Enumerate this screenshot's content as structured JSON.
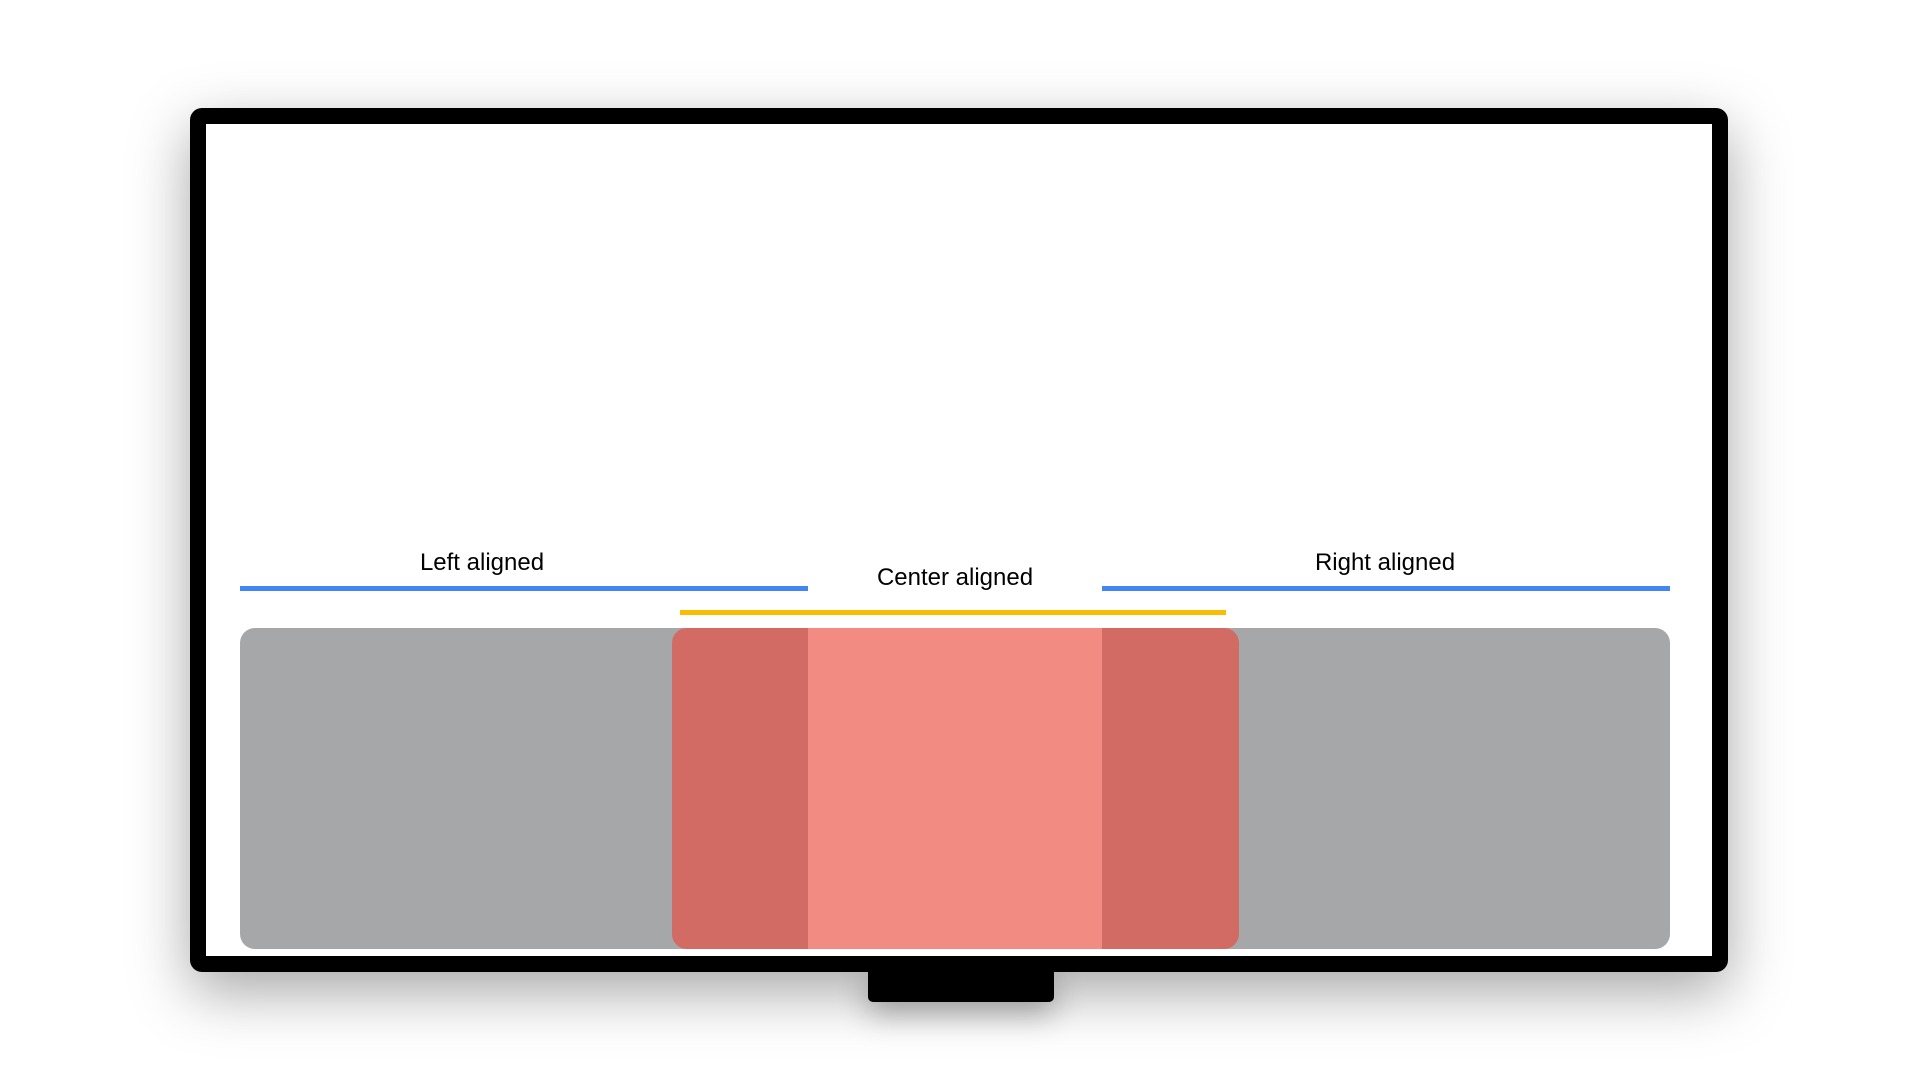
{
  "labels": {
    "left": "Left aligned",
    "center": "Center aligned",
    "right": "Right aligned"
  },
  "colors": {
    "left_line": "#4285f4",
    "right_line": "#4285f4",
    "center_line": "#fbbc04",
    "container": "#a6a7a9",
    "center_region": "#f28b82",
    "overlap_region": "#d16b63"
  }
}
